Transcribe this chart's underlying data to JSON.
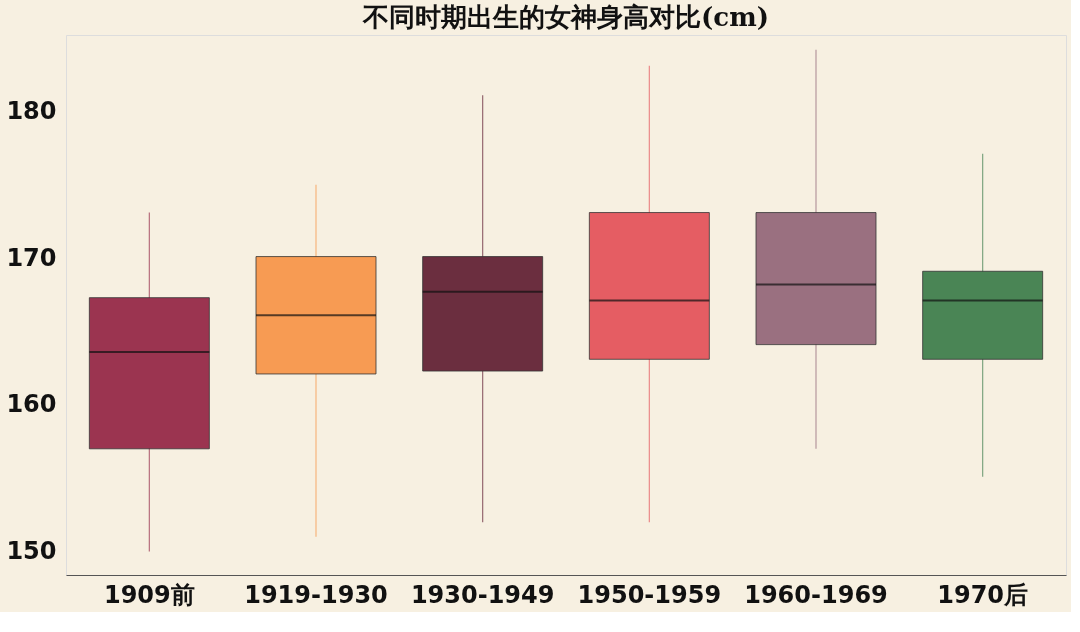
{
  "chart_data": {
    "type": "box",
    "title": "不同时期出生的女神身高对比(cm)",
    "categories": [
      "1909前",
      "1919-1930",
      "1930-1949",
      "1950-1959",
      "1960-1969",
      "1970后"
    ],
    "colors": [
      "#9b3450",
      "#f79b53",
      "#6b2e3f",
      "#e55d63",
      "#9a7080",
      "#4a8555"
    ],
    "boxes": [
      {
        "low": 150.0,
        "q1": 157.0,
        "median": 163.6,
        "q3": 167.3,
        "high": 173.1
      },
      {
        "low": 151.0,
        "q1": 162.1,
        "median": 166.1,
        "q3": 170.1,
        "high": 175.0
      },
      {
        "low": 152.0,
        "q1": 162.3,
        "median": 167.7,
        "q3": 170.1,
        "high": 181.1
      },
      {
        "low": 152.0,
        "q1": 163.1,
        "median": 167.1,
        "q3": 173.1,
        "high": 183.1
      },
      {
        "low": 157.0,
        "q1": 164.1,
        "median": 168.2,
        "q3": 173.1,
        "high": 184.2
      },
      {
        "low": 155.1,
        "q1": 163.1,
        "median": 167.1,
        "q3": 169.1,
        "high": 177.1
      }
    ],
    "ylim": [
      148.4,
      185.2
    ],
    "yticks": [
      150,
      160,
      170,
      180
    ],
    "grid": false,
    "legend": false
  }
}
